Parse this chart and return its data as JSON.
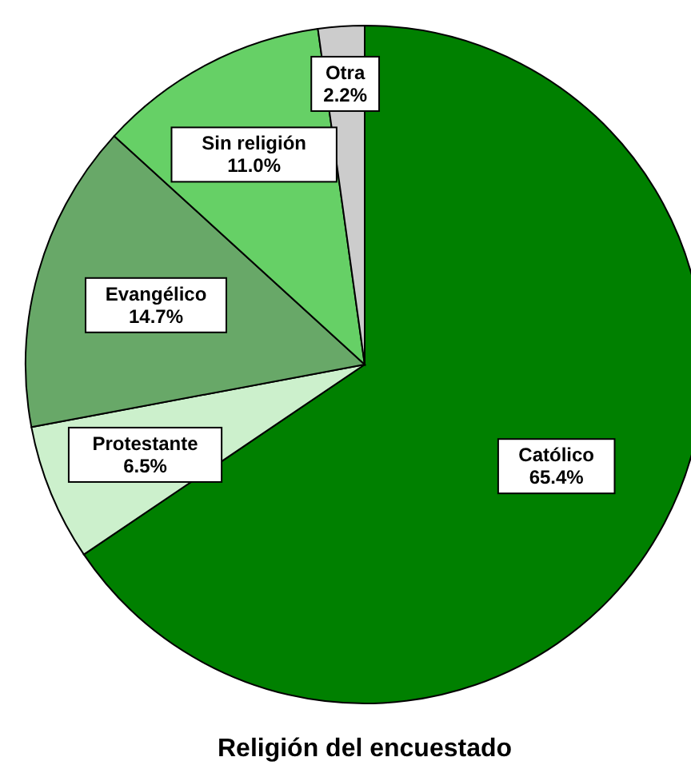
{
  "chart_data": {
    "type": "pie",
    "title": "Religión del encuestado",
    "categories": [
      "Católico",
      "Protestante",
      "Evangélico",
      "Sin religión",
      "Otra"
    ],
    "values": [
      65.4,
      6.5,
      14.7,
      11.0,
      2.2
    ],
    "colors": [
      "#008000",
      "#ccf0cc",
      "#68a868",
      "#66d066",
      "#cccccc"
    ],
    "value_labels": [
      "65.4%",
      "6.5%",
      "14.7%",
      "11.0%",
      "2.2%"
    ]
  }
}
